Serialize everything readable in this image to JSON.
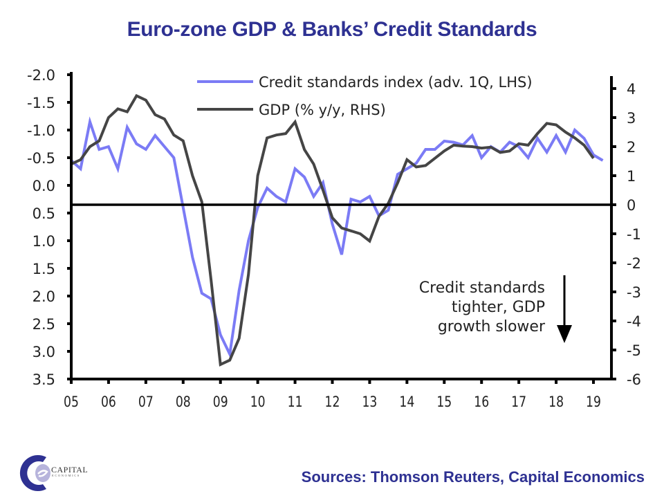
{
  "title": "Euro-zone GDP & Banks’ Credit Standards",
  "source": "Sources: Thomson Reuters, Capital Economics",
  "logo": {
    "name": "CAPITAL",
    "sub": "ECONOMICS"
  },
  "chart_data": {
    "type": "line",
    "title": "Euro-zone GDP & Banks’ Credit Standards",
    "x_tick_labels": [
      "05",
      "06",
      "07",
      "08",
      "09",
      "10",
      "11",
      "12",
      "13",
      "14",
      "15",
      "16",
      "17",
      "18",
      "19"
    ],
    "x_range": [
      2005.0,
      2019.75
    ],
    "left_axis": {
      "label": "LHS",
      "inverted": true,
      "ylim": [
        -2.0,
        3.5
      ],
      "ticks": [
        "-2.0",
        "-1.5",
        "-1.0",
        "-0.5",
        "0.0",
        "0.5",
        "1.0",
        "1.5",
        "2.0",
        "2.5",
        "3.0",
        "3.5"
      ],
      "tick_values": [
        -2.0,
        -1.5,
        -1.0,
        -0.5,
        0.0,
        0.5,
        1.0,
        1.5,
        2.0,
        2.5,
        3.0,
        3.5
      ]
    },
    "right_axis": {
      "label": "RHS",
      "ylim": [
        -6,
        4.5
      ],
      "ticks": [
        "4",
        "3",
        "2",
        "1",
        "0",
        "-1",
        "-2",
        "-3",
        "-4",
        "-5",
        "-6"
      ],
      "tick_values": [
        4,
        3,
        2,
        1,
        0,
        -1,
        -2,
        -3,
        -4,
        -5,
        -6
      ]
    },
    "zero_line_rhs": 0,
    "grid": false,
    "legend_position": "top-center",
    "series": [
      {
        "name": "Credit standards index (adv. 1Q, LHS)",
        "axis": "left",
        "color": "#7b7bf5",
        "x_start": 2005.0,
        "x_step": 0.25,
        "values": [
          -0.45,
          -0.3,
          -1.15,
          -0.65,
          -0.7,
          -0.3,
          -1.05,
          -0.75,
          -0.65,
          -0.9,
          -0.7,
          -0.5,
          0.4,
          1.3,
          1.95,
          2.05,
          2.7,
          3.05,
          1.9,
          1.0,
          0.4,
          0.05,
          0.2,
          0.3,
          -0.3,
          -0.15,
          0.2,
          -0.05,
          0.7,
          1.25,
          0.25,
          0.3,
          0.2,
          0.55,
          0.45,
          -0.2,
          -0.3,
          -0.4,
          -0.65,
          -0.65,
          -0.8,
          -0.78,
          -0.73,
          -0.9,
          -0.5,
          -0.7,
          -0.6,
          -0.78,
          -0.7,
          -0.5,
          -0.85,
          -0.6,
          -0.9,
          -0.6,
          -1.0,
          -0.85,
          -0.55,
          -0.45
        ]
      },
      {
        "name": "GDP (% y/y, RHS)",
        "axis": "right",
        "color": "#454545",
        "x_start": 2005.0,
        "x_step": 0.25,
        "values": [
          1.4,
          1.55,
          2.0,
          2.2,
          3.0,
          3.3,
          3.2,
          3.75,
          3.6,
          3.1,
          2.95,
          2.4,
          2.2,
          1.0,
          0.1,
          -2.6,
          -5.5,
          -5.35,
          -4.6,
          -2.4,
          1.0,
          2.3,
          2.4,
          2.45,
          2.85,
          1.9,
          1.4,
          0.5,
          -0.45,
          -0.8,
          -0.9,
          -1.0,
          -1.25,
          -0.4,
          0.05,
          0.75,
          1.55,
          1.3,
          1.35,
          1.6,
          1.85,
          2.05,
          2.02,
          2.0,
          1.95,
          1.98,
          1.8,
          1.85,
          2.1,
          2.05,
          2.45,
          2.8,
          2.75,
          2.5,
          2.3,
          2.05,
          1.6
        ]
      }
    ],
    "legend": [
      {
        "label": "Credit standards index (adv. 1Q, LHS)",
        "color": "#7b7bf5"
      },
      {
        "label": "GDP (% y/y, RHS)",
        "color": "#454545"
      }
    ],
    "annotation": {
      "lines": [
        "Credit standards",
        "tighter, GDP",
        "growth slower"
      ],
      "arrow": "down"
    }
  }
}
